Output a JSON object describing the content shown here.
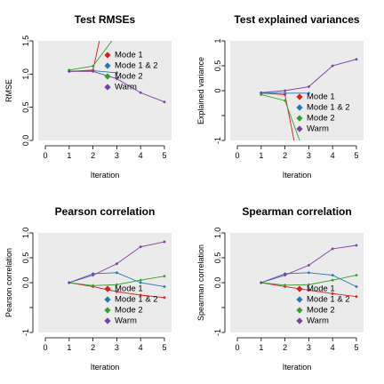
{
  "chart_data": [
    {
      "type": "line",
      "title": "Test RMSEs",
      "xlabel": "Iteration",
      "ylabel": "RMSE",
      "xlim": [
        -0.3,
        5.3
      ],
      "ylim": [
        0,
        1.5
      ],
      "xticks": [
        0,
        1,
        2,
        3,
        4,
        5
      ],
      "yticks": [
        0,
        0.5,
        1,
        1.5
      ],
      "ytick_labels": [
        "0.0",
        "0.5",
        "1.0",
        "1.5"
      ],
      "x": [
        1,
        2,
        3,
        4,
        5
      ],
      "series": [
        {
          "name": "Mode 1",
          "color": "#e31a1c",
          "values": [
            1.04,
            1.06,
            2.7,
            null,
            null
          ]
        },
        {
          "name": "Mode 1 & 2",
          "color": "#1f78b4",
          "values": [
            1.04,
            1.05,
            1.02,
            null,
            null
          ]
        },
        {
          "name": "Mode 2",
          "color": "#33a02c",
          "values": [
            1.06,
            1.12,
            1.6,
            null,
            null
          ]
        },
        {
          "name": "Warm",
          "color": "#7b3fa0",
          "values": [
            1.04,
            1.04,
            0.93,
            0.72,
            0.58
          ]
        }
      ],
      "legend": "center-right",
      "grid": false,
      "background": "#ebebeb"
    },
    {
      "type": "line",
      "title": "Test explained variances",
      "xlabel": "Iteration",
      "ylabel": "Explained variance",
      "xlim": [
        -0.3,
        5.3
      ],
      "ylim": [
        -1,
        1
      ],
      "xticks": [
        0,
        1,
        2,
        3,
        4,
        5
      ],
      "yticks": [
        -1,
        -0.5,
        0,
        0.5,
        1
      ],
      "ytick_labels": [
        "-1",
        "",
        "0",
        "0.5",
        "1"
      ],
      "x": [
        1,
        2,
        3,
        4,
        5
      ],
      "series": [
        {
          "name": "Mode 1",
          "color": "#e31a1c",
          "values": [
            -0.05,
            -0.08,
            -2.5,
            null,
            null
          ]
        },
        {
          "name": "Mode 1 & 2",
          "color": "#1f78b4",
          "values": [
            -0.05,
            -0.05,
            -0.05,
            null,
            null
          ]
        },
        {
          "name": "Mode 2",
          "color": "#33a02c",
          "values": [
            -0.08,
            -0.2,
            -1.5,
            null,
            null
          ]
        },
        {
          "name": "Warm",
          "color": "#7b3fa0",
          "values": [
            -0.04,
            0.0,
            0.08,
            0.5,
            0.63
          ]
        }
      ],
      "legend": "bottom-right",
      "grid": false,
      "background": "#ebebeb"
    },
    {
      "type": "line",
      "title": "Pearson correlation",
      "xlabel": "Iteration",
      "ylabel": "Pearson correlation",
      "xlim": [
        -0.3,
        5.3
      ],
      "ylim": [
        -1,
        1
      ],
      "xticks": [
        0,
        1,
        2,
        3,
        4,
        5
      ],
      "yticks": [
        -1,
        -0.5,
        0,
        0.5,
        1
      ],
      "ytick_labels": [
        "-1",
        "",
        "0.0",
        "0.5",
        "1.0"
      ],
      "x": [
        1,
        2,
        3,
        4,
        5
      ],
      "series": [
        {
          "name": "Mode 1",
          "color": "#e31a1c",
          "values": [
            0.0,
            -0.08,
            -0.18,
            -0.25,
            -0.3
          ]
        },
        {
          "name": "Mode 1 & 2",
          "color": "#1f78b4",
          "values": [
            0.0,
            0.18,
            0.2,
            0.0,
            -0.08
          ]
        },
        {
          "name": "Mode 2",
          "color": "#33a02c",
          "values": [
            0.0,
            -0.06,
            -0.04,
            0.05,
            0.13
          ]
        },
        {
          "name": "Warm",
          "color": "#7b3fa0",
          "values": [
            0.0,
            0.15,
            0.38,
            0.72,
            0.82
          ]
        }
      ],
      "legend": "bottom-right",
      "grid": false,
      "background": "#ebebeb"
    },
    {
      "type": "line",
      "title": "Spearman correlation",
      "xlabel": "Iteration",
      "ylabel": "Spearman correlation",
      "xlim": [
        -0.3,
        5.3
      ],
      "ylim": [
        -1,
        1
      ],
      "xticks": [
        0,
        1,
        2,
        3,
        4,
        5
      ],
      "yticks": [
        -1,
        -0.5,
        0,
        0.5,
        1
      ],
      "ytick_labels": [
        "-1",
        "",
        "0.0",
        "0.5",
        "1.0"
      ],
      "x": [
        1,
        2,
        3,
        4,
        5
      ],
      "series": [
        {
          "name": "Mode 1",
          "color": "#e31a1c",
          "values": [
            0.0,
            -0.08,
            -0.15,
            -0.22,
            -0.28
          ]
        },
        {
          "name": "Mode 1 & 2",
          "color": "#1f78b4",
          "values": [
            0.0,
            0.18,
            0.2,
            0.15,
            -0.08
          ]
        },
        {
          "name": "Mode 2",
          "color": "#33a02c",
          "values": [
            0.0,
            -0.05,
            -0.04,
            0.05,
            0.15
          ]
        },
        {
          "name": "Warm",
          "color": "#7b3fa0",
          "values": [
            0.0,
            0.15,
            0.35,
            0.68,
            0.75
          ]
        }
      ],
      "legend": "bottom-right",
      "grid": false,
      "background": "#ebebeb"
    }
  ]
}
